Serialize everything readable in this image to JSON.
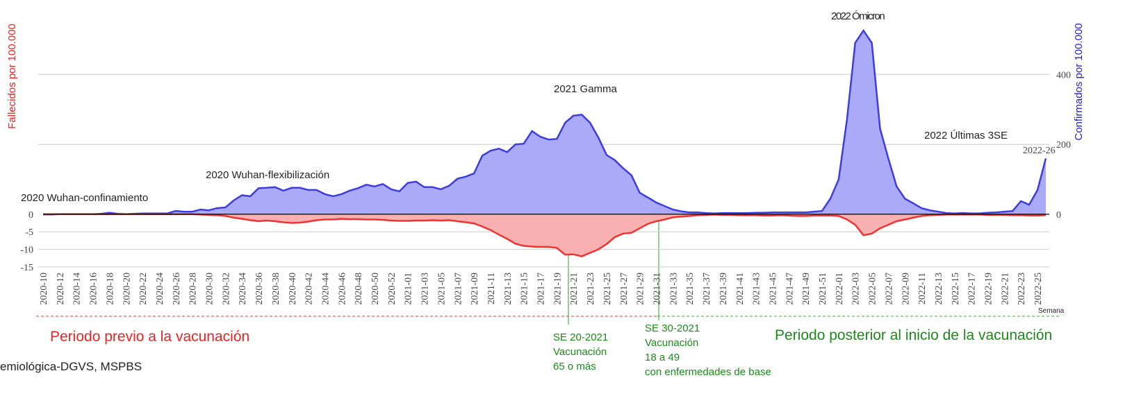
{
  "chart_data": {
    "type": "area",
    "ylabel": "Fallecidos por 100.000",
    "y2label": "Confirmados por 100.000",
    "xlabel": "Semana",
    "ylim": [
      -16,
      55
    ],
    "yticks": [
      -15,
      -10,
      -5,
      0
    ],
    "y2lim": [
      -160,
      553
    ],
    "y2ticks": [
      0,
      200,
      400
    ],
    "grid": true,
    "categories": [
      "2020-10",
      null,
      "2020-12",
      null,
      "2020-14",
      null,
      "2020-16",
      null,
      "2020-18",
      null,
      "2020-20",
      null,
      "2020-22",
      null,
      "2020-24",
      null,
      "2020-26",
      null,
      "2020-28",
      null,
      "2020-30",
      null,
      "2020-32",
      null,
      "2020-34",
      null,
      "2020-36",
      null,
      "2020-38",
      null,
      "2020-40",
      null,
      "2020-42",
      null,
      "2020-44",
      null,
      "2020-46",
      null,
      "2020-48",
      null,
      "2020-50",
      null,
      "2020-52",
      null,
      "2021-01",
      null,
      "2021-03",
      null,
      "2021-05",
      null,
      "2021-07",
      null,
      "2021-09",
      null,
      "2021-11",
      null,
      "2021-13",
      null,
      "2021-15",
      null,
      "2021-17",
      null,
      "2021-19",
      null,
      "2021-21",
      null,
      "2021-23",
      null,
      "2021-25",
      null,
      "2021-27",
      null,
      "2021-29",
      null,
      "2021-31",
      null,
      "2021-33",
      null,
      "2021-35",
      null,
      "2021-37",
      null,
      "2021-39",
      null,
      "2021-41",
      null,
      "2021-43",
      null,
      "2021-45",
      null,
      "2021-47",
      null,
      "2021-49",
      null,
      "2021-51",
      null,
      "2022-01",
      null,
      "2022-03",
      null,
      "2022-05",
      null,
      "2022-07",
      null,
      "2022-09",
      null,
      "2022-11",
      null,
      "2022-13",
      null,
      "2022-15",
      null,
      "2022-17",
      null,
      "2022-19",
      null,
      "2022-21",
      null,
      "2022-23",
      null,
      "2022-25",
      null
    ],
    "series": [
      {
        "axis": "y2",
        "color": "#3c3ce0",
        "fill": "#aaaaf8",
        "values": [
          0,
          0,
          1,
          1,
          1,
          1,
          1,
          2,
          5,
          2,
          1,
          2,
          3,
          3,
          3,
          3,
          10,
          8,
          8,
          14,
          12,
          18,
          20,
          40,
          55,
          52,
          75,
          76,
          78,
          68,
          76,
          76,
          70,
          70,
          58,
          52,
          58,
          68,
          75,
          85,
          80,
          87,
          72,
          66,
          90,
          94,
          78,
          78,
          72,
          82,
          102,
          108,
          117,
          168,
          182,
          188,
          178,
          200,
          202,
          238,
          222,
          214,
          216,
          262,
          282,
          285,
          262,
          220,
          170,
          155,
          132,
          112,
          62,
          48,
          34,
          24,
          14,
          9,
          6,
          6,
          4,
          3,
          4,
          4,
          4,
          4,
          5,
          5,
          6,
          6,
          6,
          6,
          6,
          8,
          10,
          45,
          100,
          270,
          490,
          525,
          490,
          245,
          160,
          80,
          45,
          32,
          18,
          12,
          8,
          4,
          3,
          4,
          3,
          3,
          5,
          6,
          8,
          10,
          38,
          28,
          70,
          160
        ]
      },
      {
        "axis": "y",
        "color": "#ee3333",
        "fill": "#f9b0b0",
        "values": [
          0,
          0,
          0,
          0,
          0,
          0,
          0,
          0,
          0,
          0,
          0,
          0,
          0,
          0,
          0,
          0,
          0,
          0,
          0,
          -0.1,
          -0.2,
          -0.3,
          -0.5,
          -1,
          -1.3,
          -1.7,
          -2,
          -1.8,
          -2,
          -2.3,
          -2.5,
          -2.4,
          -2.1,
          -1.7,
          -1.5,
          -1.5,
          -1.3,
          -1.4,
          -1.4,
          -1.5,
          -1.5,
          -1.6,
          -1.8,
          -1.9,
          -1.9,
          -1.8,
          -1.8,
          -1.7,
          -1.8,
          -1.7,
          -2,
          -2.3,
          -2.6,
          -3.5,
          -4.5,
          -5.8,
          -7,
          -8.4,
          -9,
          -9.2,
          -9.3,
          -9.3,
          -9.6,
          -11.5,
          -11.4,
          -12,
          -11,
          -10,
          -8.5,
          -6.5,
          -5.5,
          -5.3,
          -4,
          -2.7,
          -2,
          -1.5,
          -0.9,
          -0.7,
          -0.5,
          -0.3,
          -0.2,
          -0.1,
          -0.2,
          -0.2,
          -0.3,
          -0.3,
          -0.3,
          -0.4,
          -0.4,
          -0.3,
          -0.4,
          -0.5,
          -0.5,
          -0.4,
          -0.4,
          -0.4,
          -0.5,
          -1.5,
          -3,
          -6,
          -5.5,
          -4,
          -3,
          -2,
          -1.5,
          -1,
          -0.5,
          -0.3,
          -0.2,
          -0.1,
          -0.1,
          -0.1,
          -0.1,
          -0.1,
          -0.2,
          -0.2,
          -0.2,
          -0.3,
          -0.3,
          -0.4,
          -0.4,
          -0.3
        ]
      }
    ],
    "annotations": [
      "2020 Wuhan-confinamiento",
      "2020 Wuhan-flexibilización",
      "2021 Gamma",
      "2022 Ómicron",
      "2022 Últimas 3SE",
      "2022-26"
    ],
    "periods": [
      "Periodo previo a la vacunación",
      "Periodo posterior  al inicio de la vacunación"
    ],
    "milestones": [
      [
        "SE 20-2021",
        "Vacunación",
        "65 o más"
      ],
      [
        "SE 30-2021",
        "Vacunación",
        "18 a 49",
        "con enfermedades de base"
      ]
    ],
    "source": "emiológica-DGVS, MSPBS"
  }
}
